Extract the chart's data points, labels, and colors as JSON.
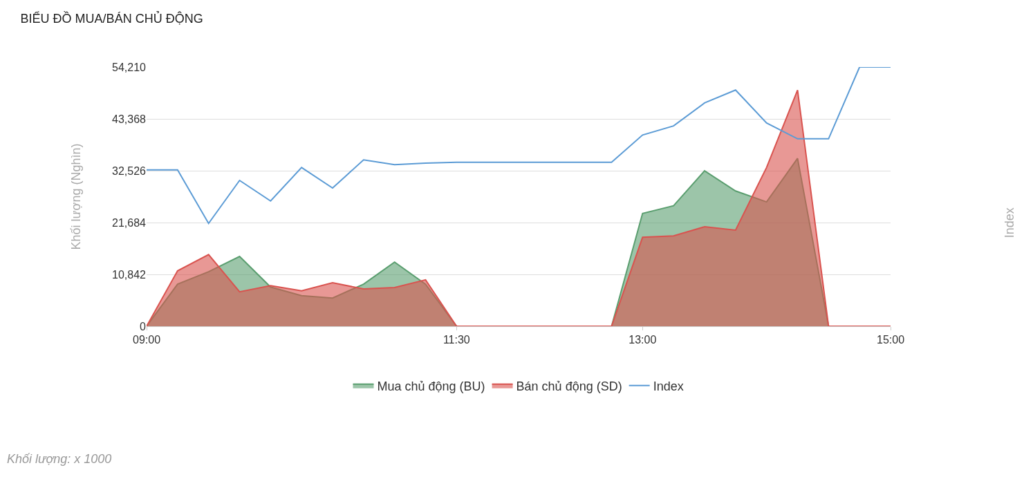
{
  "chart_data": {
    "type": "area",
    "title": "BIỂU ĐỒ MUA/BÁN CHỦ ĐỘNG",
    "ylabel": "Khối lượng (Nghìn)",
    "x": [
      9,
      9.25,
      9.5,
      9.75,
      10,
      10.25,
      10.5,
      10.75,
      11,
      11.25,
      11.5,
      11.75,
      12,
      12.25,
      12.5,
      12.75,
      13,
      13.25,
      13.5,
      13.75,
      14,
      14.25,
      14.5,
      14.75,
      15
    ],
    "xlim": [
      9,
      15
    ],
    "xticks": [
      {
        "value": 9,
        "label": "09:00"
      },
      {
        "value": 11.5,
        "label": "11:30"
      },
      {
        "value": 13,
        "label": "13:00"
      },
      {
        "value": 15,
        "label": "15:00"
      }
    ],
    "ylim": [
      0,
      54210
    ],
    "yticks": [
      {
        "value": 0,
        "label": "0"
      },
      {
        "value": 10842,
        "label": "10,842"
      },
      {
        "value": 21684,
        "label": "21,684"
      },
      {
        "value": 32526,
        "label": "32,526"
      },
      {
        "value": 43368,
        "label": "43,368"
      },
      {
        "value": 54210,
        "label": "54,210"
      }
    ],
    "series": [
      {
        "name": "Mua chủ động (BU)",
        "color": "#5a9e6f",
        "values": [
          0,
          8800,
          11400,
          14600,
          8200,
          6400,
          5900,
          8800,
          13400,
          8800,
          0,
          0,
          0,
          0,
          0,
          0,
          23600,
          25200,
          32500,
          28300,
          26000,
          35100,
          0,
          0,
          0
        ]
      },
      {
        "name": "Bán chủ động (SD)",
        "color": "#d9534f",
        "values": [
          0,
          11600,
          15000,
          7200,
          8500,
          7400,
          9100,
          7800,
          8100,
          9700,
          0,
          0,
          0,
          0,
          0,
          0,
          18600,
          18900,
          20800,
          20100,
          33200,
          49400,
          0,
          0,
          0
        ]
      },
      {
        "name": "Index",
        "color": "#5b9bd5",
        "type": "line",
        "values": [
          32700,
          32700,
          21500,
          30500,
          26200,
          33200,
          28900,
          34800,
          33800,
          34100,
          34300,
          34300,
          34300,
          34300,
          34300,
          34300,
          40000,
          41900,
          46700,
          49400,
          42500,
          39200,
          39200,
          54210,
          54210
        ]
      }
    ],
    "grid": "y",
    "legend": "bottom",
    "marker": "none",
    "line_style": "solid",
    "annotations": [
      "Index",
      "Khối lượng: x 1000"
    ]
  }
}
